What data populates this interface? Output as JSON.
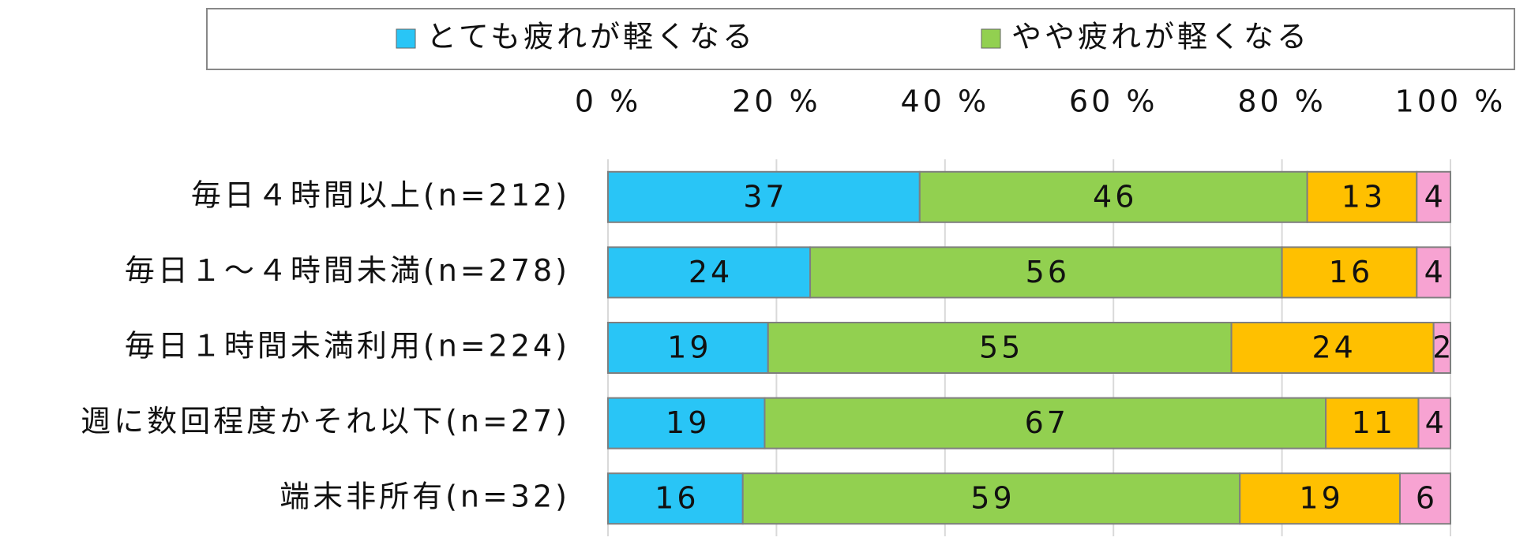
{
  "chart_data": {
    "type": "stacked-bar-horizontal",
    "categories": [
      "毎日４時間以上(n=212)",
      "毎日１～４時間未満(n=278)",
      "毎日１時間未満利用(n=224)",
      "週に数回程度かそれ以下(n=27)",
      "端末非所有(n=32)"
    ],
    "series": [
      {
        "name": "とても疲れが軽くなる",
        "color": "#29c5f6",
        "values": [
          37,
          24,
          19,
          18.6,
          16
        ],
        "value_labels": [
          "37",
          "24",
          "19",
          "19",
          "16"
        ]
      },
      {
        "name": "やや疲れが軽くなる",
        "color": "#92d050",
        "values": [
          46,
          56,
          55,
          66.6,
          59
        ],
        "value_labels": [
          "46",
          "56",
          "55",
          "67",
          "59"
        ]
      },
      {
        "color": "#ffc000",
        "values": [
          13,
          16,
          24,
          11,
          19
        ],
        "value_labels": [
          "13",
          "16",
          "24",
          "11",
          "19"
        ]
      },
      {
        "color": "#f7a3d2",
        "values": [
          4,
          4,
          2,
          3.8,
          6
        ],
        "value_labels": [
          "4",
          "4",
          "2",
          "4",
          "6"
        ]
      }
    ],
    "xlim": [
      0,
      100
    ],
    "xticks": [
      {
        "value": 0,
        "label": "0 %"
      },
      {
        "value": 20,
        "label": "20 %"
      },
      {
        "value": 40,
        "label": "40 %"
      },
      {
        "value": 60,
        "label": "60 %"
      },
      {
        "value": 80,
        "label": "80 %"
      },
      {
        "value": 100,
        "label": "100 %"
      }
    ],
    "grid": true
  }
}
